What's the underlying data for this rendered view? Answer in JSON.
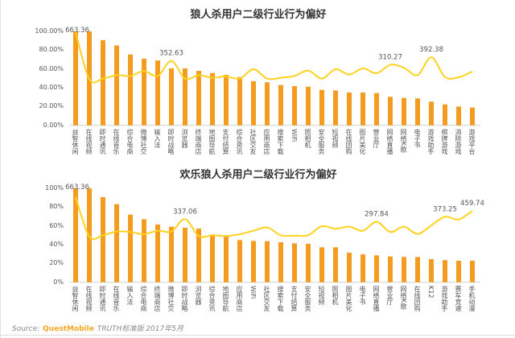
{
  "colors": {
    "bar": "#F39C1F",
    "line": "#FFD21F",
    "axis": "#d0d0d0"
  },
  "source": {
    "label": "Source:",
    "brand": "QuestMobile",
    "text": "TRUTH标准版 2017年5月"
  },
  "chart_data": [
    {
      "type": "bar+line",
      "title": "狼人杀用户二级行业行为偏好",
      "ylim": [
        0,
        100
      ],
      "yticks": [
        "0.00%",
        "20.00%",
        "40.00%",
        "60.00%",
        "80.00%",
        "100.00%"
      ],
      "grid": false,
      "categories": [
        "益智休闲",
        "在线视频",
        "即时通讯",
        "在线音乐",
        "综合电商",
        "微博社交",
        "输入法",
        "即时战略",
        "浏览器",
        "终端商店",
        "地图导航",
        "支付结算",
        "综合资讯",
        "社区交友",
        "应用商店",
        "搜索下载",
        "WiFi",
        "照相机",
        "安全服务",
        "短视频",
        "在线团购",
        "图片美化",
        "营业厅",
        "网络直播",
        "网络K歌",
        "电子书",
        "游戏助手",
        "棋牌游戏",
        "消除游戏",
        "游戏平台"
      ],
      "bar_values": [
        100,
        100,
        90.6,
        85,
        75.4,
        71,
        69,
        60.6,
        60.6,
        58,
        55.7,
        53.7,
        51.4,
        46.9,
        45.8,
        42.9,
        41.7,
        41.1,
        37.7,
        37.1,
        34.9,
        34.9,
        34.3,
        30.3,
        29.1,
        28.6,
        25.2,
        22.3,
        20,
        18.9
      ],
      "line_values": [
        663.36,
        156,
        161,
        199,
        190,
        243,
        190,
        352.63,
        161,
        199,
        170,
        185,
        161,
        263,
        161,
        170,
        190,
        248,
        161,
        263,
        205,
        272,
        219,
        310.27,
        278,
        199,
        392.38,
        178,
        176,
        237
      ],
      "line_labels": [
        {
          "index": 0,
          "text": "663.36"
        },
        {
          "index": 7,
          "text": "352.63"
        },
        {
          "index": 23,
          "text": "310.27"
        },
        {
          "index": 26,
          "text": "392.38"
        }
      ]
    },
    {
      "type": "bar+line",
      "title": "欢乐狼人杀用户二级行业行为偏好",
      "ylim": [
        0,
        100
      ],
      "yticks": [
        "0%",
        "20%",
        "40%",
        "60%",
        "80%",
        "100%"
      ],
      "grid": false,
      "categories": [
        "益智休闲",
        "在线视频",
        "即时通讯",
        "在线音乐",
        "输入法",
        "综合电商",
        "终端商店",
        "微博社交",
        "即时战略",
        "浏览器",
        "综合资讯",
        "地图导航",
        "应用商店",
        "WiFi",
        "社区交友",
        "搜索下载",
        "支付结算",
        "安全服务",
        "短视频",
        "照相机",
        "图片美化",
        "电子书",
        "网络直播",
        "营业厅",
        "网络K歌",
        "在线团购",
        "K12",
        "游戏助手",
        "赛车竞速",
        "手机动漫"
      ],
      "bar_values": [
        100,
        100,
        90.6,
        83.1,
        72,
        67.1,
        61.4,
        59.1,
        58,
        57.1,
        50,
        50,
        44.9,
        44,
        43.7,
        42.6,
        41.4,
        40.9,
        37.2,
        37.2,
        31.4,
        29.7,
        28.6,
        27.4,
        26.9,
        26.9,
        24.6,
        23.5,
        22.9,
        22.9
      ],
      "line_values": [
        663.36,
        78,
        98,
        153,
        146,
        113,
        165,
        153,
        337.06,
        86,
        98,
        86,
        113,
        165,
        213,
        98,
        93,
        98,
        233,
        194,
        225,
        165,
        297.84,
        146,
        225,
        117,
        245,
        373.25,
        332,
        459.74
      ],
      "line_labels": [
        {
          "index": 0,
          "text": "663.36"
        },
        {
          "index": 8,
          "text": "337.06"
        },
        {
          "index": 22,
          "text": "297.84"
        },
        {
          "index": 27,
          "text": "373.25"
        },
        {
          "index": 29,
          "text": "459.74"
        }
      ]
    }
  ]
}
